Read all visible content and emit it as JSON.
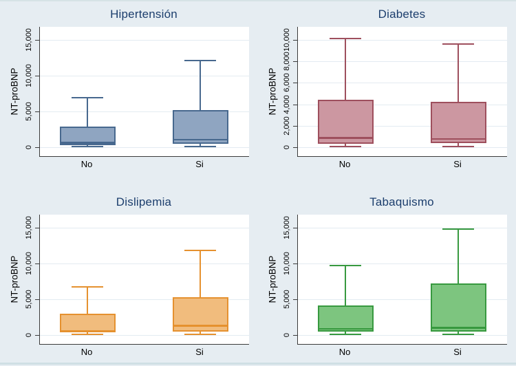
{
  "figure": {
    "background": "#e6edf2",
    "plot_background": "#ffffff",
    "gridline_color": "#e3ebf1",
    "axis_color": "#3a3a3a",
    "title_color": "#1c3e6d",
    "tick_text_color": "#000000"
  },
  "chart_data": [
    {
      "type": "box",
      "title": "Hipertensión",
      "ylabel": "NT-proBNP",
      "categories": [
        "No",
        "Si"
      ],
      "yticks": [
        0,
        5000,
        10000,
        15000
      ],
      "ytick_labels": [
        "0",
        "5,000",
        "10,000",
        "15,000"
      ],
      "ylim": [
        -1300,
        17000
      ],
      "grid": true,
      "legend": "none",
      "color_fill": "#8fa5c1",
      "color_stroke": "#47688e",
      "boxes": [
        {
          "category": "No",
          "whisker_low": 50,
          "q1": 300,
          "median": 750,
          "q3": 2900,
          "whisker_high": 6900
        },
        {
          "category": "Si",
          "whisker_low": 50,
          "q1": 450,
          "median": 1200,
          "q3": 5200,
          "whisker_high": 12100
        }
      ]
    },
    {
      "type": "box",
      "title": "Diabetes",
      "ylabel": "NT-proBNP",
      "categories": [
        "No",
        "Si"
      ],
      "yticks": [
        0,
        2000,
        4000,
        6000,
        8000,
        10000
      ],
      "ytick_labels": [
        "0",
        "2,000",
        "4,000",
        "6,000",
        "8,000",
        "10,000"
      ],
      "ylim": [
        -850,
        11000
      ],
      "grid": true,
      "legend": "none",
      "color_fill": "#cc97a1",
      "color_stroke": "#9e4f5d",
      "boxes": [
        {
          "category": "No",
          "whisker_low": 50,
          "q1": 350,
          "median": 950,
          "q3": 4400,
          "whisker_high": 10100
        },
        {
          "category": "Si",
          "whisker_low": 50,
          "q1": 400,
          "median": 850,
          "q3": 4200,
          "whisker_high": 9600
        }
      ]
    },
    {
      "type": "box",
      "title": "Dislipemia",
      "ylabel": "NT-proBNP",
      "categories": [
        "No",
        "Si"
      ],
      "yticks": [
        0,
        5000,
        10000,
        15000
      ],
      "ytick_labels": [
        "0",
        "5,000",
        "10,000",
        "15,000"
      ],
      "ylim": [
        -1300,
        17000
      ],
      "grid": true,
      "legend": "none",
      "color_fill": "#f1bc7d",
      "color_stroke": "#e5912f",
      "boxes": [
        {
          "category": "No",
          "whisker_low": 50,
          "q1": 350,
          "median": 650,
          "q3": 3000,
          "whisker_high": 6700
        },
        {
          "category": "Si",
          "whisker_low": 50,
          "q1": 450,
          "median": 1400,
          "q3": 5250,
          "whisker_high": 11800
        }
      ]
    },
    {
      "type": "box",
      "title": "Tabaquismo",
      "ylabel": "NT-proBNP",
      "categories": [
        "No",
        "Si"
      ],
      "yticks": [
        0,
        5000,
        10000,
        15000
      ],
      "ytick_labels": [
        "0",
        "5,000",
        "10,000",
        "15,000"
      ],
      "ylim": [
        -1300,
        17000
      ],
      "grid": true,
      "legend": "none",
      "color_fill": "#7dc57f",
      "color_stroke": "#37993f",
      "boxes": [
        {
          "category": "No",
          "whisker_low": 50,
          "q1": 450,
          "median": 1000,
          "q3": 4100,
          "whisker_high": 9700
        },
        {
          "category": "Si",
          "whisker_low": 50,
          "q1": 450,
          "median": 1150,
          "q3": 7200,
          "whisker_high": 14800
        }
      ]
    }
  ]
}
